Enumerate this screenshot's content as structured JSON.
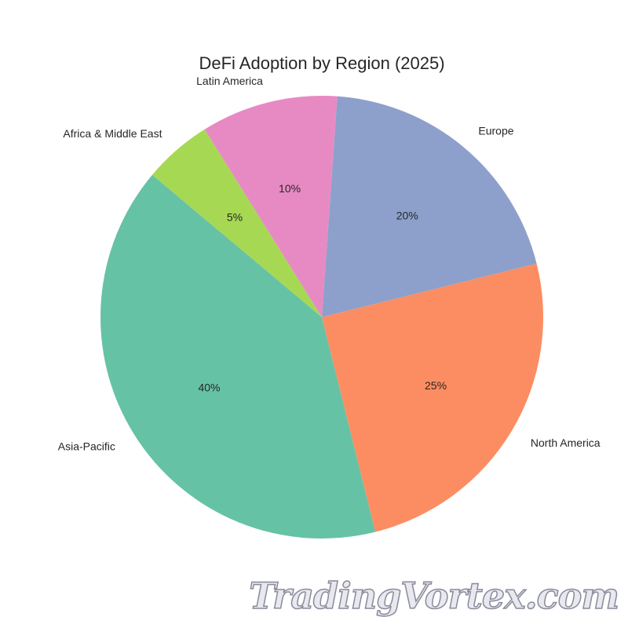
{
  "chart_data": {
    "type": "pie",
    "title": "DeFi Adoption by Region (2025)",
    "categories": [
      "Asia-Pacific",
      "North America",
      "Europe",
      "Latin America",
      "Africa & Middle East"
    ],
    "values": [
      40,
      25,
      20,
      10,
      5
    ],
    "percent_labels": [
      "40%",
      "25%",
      "20%",
      "10%",
      "5%"
    ],
    "colors": [
      "#66c2a5",
      "#fc8d62",
      "#8da0cb",
      "#e78ac3",
      "#a6d854"
    ],
    "start_angle_deg": 140,
    "direction": "counterclockwise"
  },
  "watermark": "TradingVortex.com"
}
